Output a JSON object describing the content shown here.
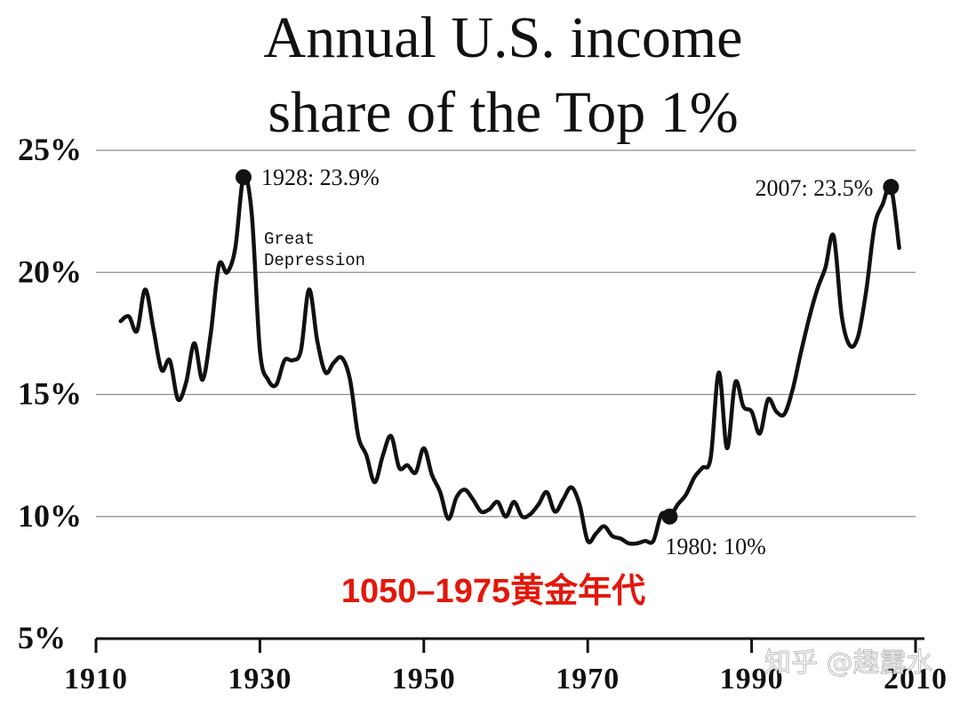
{
  "chart_data": {
    "type": "line",
    "title_lines": [
      "Annual U.S. income",
      "share of the Top 1%"
    ],
    "xlabel": "",
    "ylabel": "",
    "xlim": [
      1910,
      2010
    ],
    "ylim": [
      5,
      25
    ],
    "grid": true,
    "y_ticks": [
      {
        "value": 25,
        "label": "25%"
      },
      {
        "value": 20,
        "label": "20%"
      },
      {
        "value": 15,
        "label": "15%"
      },
      {
        "value": 10,
        "label": "10%"
      },
      {
        "value": 5,
        "label": "5%"
      }
    ],
    "x_ticks": [
      {
        "value": 1910,
        "label": "1910"
      },
      {
        "value": 1930,
        "label": "1930"
      },
      {
        "value": 1950,
        "label": "1950"
      },
      {
        "value": 1970,
        "label": "1970"
      },
      {
        "value": 1990,
        "label": "1990"
      },
      {
        "value": 2010,
        "label": "2010"
      }
    ],
    "series": [
      {
        "points": [
          [
            1913,
            18.0
          ],
          [
            1914,
            18.2
          ],
          [
            1915,
            17.6
          ],
          [
            1916,
            19.3
          ],
          [
            1917,
            17.7
          ],
          [
            1918,
            16.0
          ],
          [
            1919,
            16.4
          ],
          [
            1920,
            14.8
          ],
          [
            1921,
            15.5
          ],
          [
            1922,
            17.1
          ],
          [
            1923,
            15.6
          ],
          [
            1924,
            17.5
          ],
          [
            1925,
            20.3
          ],
          [
            1926,
            20.0
          ],
          [
            1927,
            21.0
          ],
          [
            1928,
            23.9
          ],
          [
            1929,
            22.4
          ],
          [
            1930,
            16.8
          ],
          [
            1931,
            15.6
          ],
          [
            1932,
            15.4
          ],
          [
            1933,
            16.4
          ],
          [
            1934,
            16.4
          ],
          [
            1935,
            16.8
          ],
          [
            1936,
            19.3
          ],
          [
            1937,
            17.2
          ],
          [
            1938,
            15.9
          ],
          [
            1939,
            16.3
          ],
          [
            1940,
            16.5
          ],
          [
            1941,
            15.6
          ],
          [
            1942,
            13.3
          ],
          [
            1943,
            12.5
          ],
          [
            1944,
            11.4
          ],
          [
            1945,
            12.5
          ],
          [
            1946,
            13.3
          ],
          [
            1947,
            12.0
          ],
          [
            1948,
            12.1
          ],
          [
            1949,
            11.8
          ],
          [
            1950,
            12.8
          ],
          [
            1951,
            11.7
          ],
          [
            1952,
            11.0
          ],
          [
            1953,
            9.9
          ],
          [
            1954,
            10.8
          ],
          [
            1955,
            11.1
          ],
          [
            1956,
            10.7
          ],
          [
            1957,
            10.2
          ],
          [
            1958,
            10.3
          ],
          [
            1959,
            10.6
          ],
          [
            1960,
            10.0
          ],
          [
            1961,
            10.6
          ],
          [
            1962,
            10.0
          ],
          [
            1963,
            10.1
          ],
          [
            1964,
            10.5
          ],
          [
            1965,
            11.0
          ],
          [
            1966,
            10.2
          ],
          [
            1967,
            10.7
          ],
          [
            1968,
            11.2
          ],
          [
            1969,
            10.5
          ],
          [
            1970,
            9.0
          ],
          [
            1971,
            9.3
          ],
          [
            1972,
            9.6
          ],
          [
            1973,
            9.2
          ],
          [
            1974,
            9.1
          ],
          [
            1975,
            8.9
          ],
          [
            1976,
            8.9
          ],
          [
            1977,
            9.0
          ],
          [
            1978,
            9.0
          ],
          [
            1979,
            10.1
          ],
          [
            1980,
            10.0
          ],
          [
            1981,
            10.5
          ],
          [
            1982,
            10.9
          ],
          [
            1983,
            11.6
          ],
          [
            1984,
            12.0
          ],
          [
            1985,
            12.4
          ],
          [
            1986,
            15.9
          ],
          [
            1987,
            12.8
          ],
          [
            1988,
            15.5
          ],
          [
            1989,
            14.5
          ],
          [
            1990,
            14.3
          ],
          [
            1991,
            13.4
          ],
          [
            1992,
            14.8
          ],
          [
            1993,
            14.3
          ],
          [
            1994,
            14.2
          ],
          [
            1995,
            15.2
          ],
          [
            1996,
            16.7
          ],
          [
            1997,
            18.1
          ],
          [
            1998,
            19.3
          ],
          [
            1999,
            20.2
          ],
          [
            2000,
            21.5
          ],
          [
            2001,
            18.2
          ],
          [
            2002,
            17.0
          ],
          [
            2003,
            17.4
          ],
          [
            2004,
            19.3
          ],
          [
            2005,
            21.9
          ],
          [
            2006,
            22.8
          ],
          [
            2007,
            23.5
          ],
          [
            2008,
            21.0
          ]
        ]
      }
    ],
    "highlighted_points": [
      {
        "x": 1928,
        "y": 23.9,
        "label": "1928: 23.9%"
      },
      {
        "x": 1980,
        "y": 10.0,
        "label": "1980: 10%"
      },
      {
        "x": 2007,
        "y": 23.5,
        "label": "2007: 23.5%"
      }
    ],
    "annotations": [
      {
        "lines": [
          "Great",
          "Depression"
        ]
      }
    ]
  },
  "overlay_caption": "1050–1975黄金年代",
  "watermark": "知乎 @趣露水"
}
